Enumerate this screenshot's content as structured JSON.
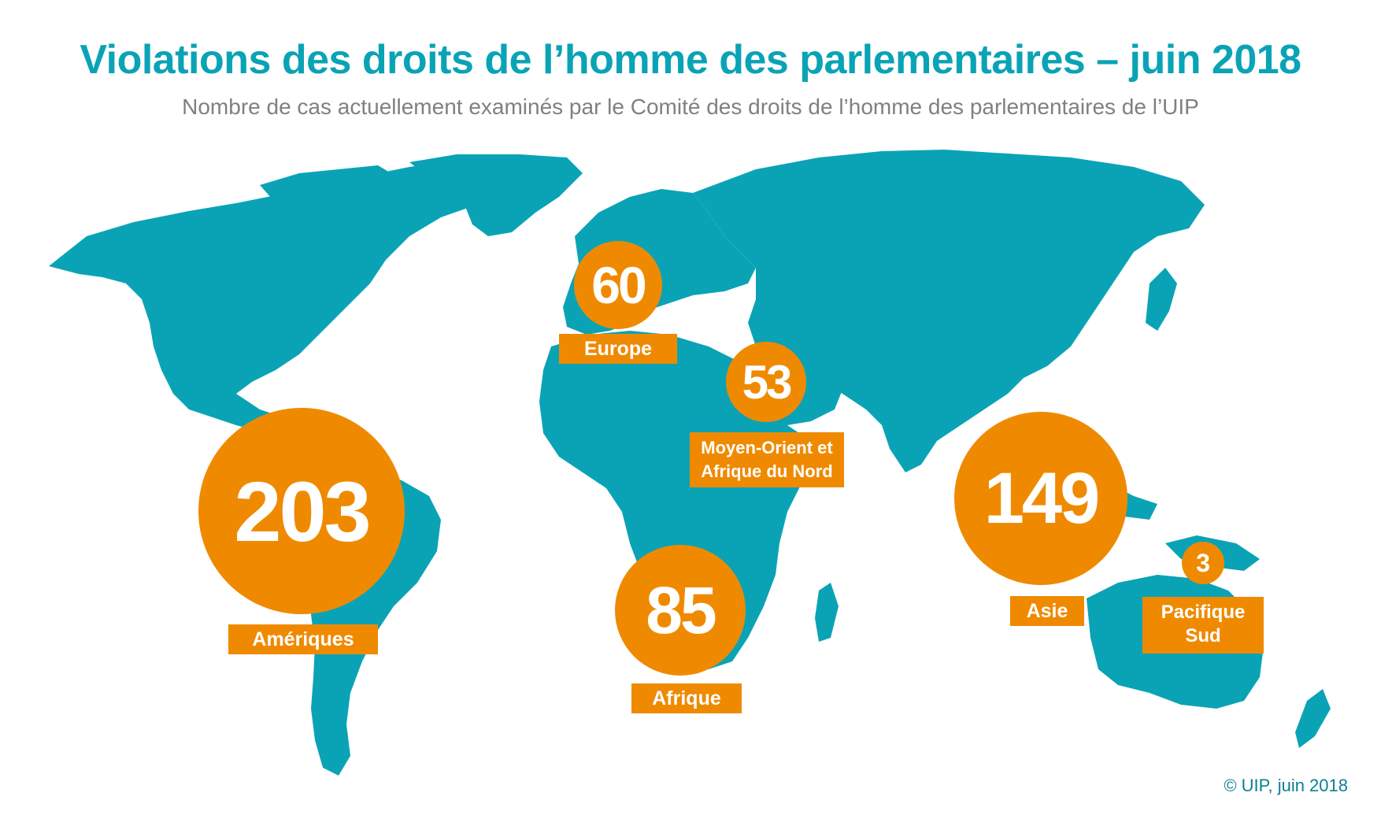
{
  "title": "Violations des droits de l’homme des parlementaires – juin 2018",
  "subtitle": "Nombre de cas actuellement examinés par le Comité des droits de l’homme des parlementaires de l’UIP",
  "regions": [
    {
      "id": "ameriques",
      "value": "203",
      "label_lines": [
        "Amériques"
      ]
    },
    {
      "id": "europe",
      "value": "60",
      "label_lines": [
        "Europe"
      ]
    },
    {
      "id": "moyen-orient",
      "value": "53",
      "label_lines": [
        "Moyen-Orient et",
        "Afrique du Nord"
      ]
    },
    {
      "id": "afrique",
      "value": "85",
      "label_lines": [
        "Afrique"
      ]
    },
    {
      "id": "asie",
      "value": "149",
      "label_lines": [
        "Asie"
      ]
    },
    {
      "id": "pacifique",
      "value": "3",
      "label_lines": [
        "Pacifique",
        "Sud"
      ]
    }
  ],
  "credit": "© UIP, juin 2018",
  "colors": {
    "land": "#0aa3b6",
    "bubble": "#ef8a00",
    "title": "#0aa3b6",
    "subtitle": "#808080"
  }
}
